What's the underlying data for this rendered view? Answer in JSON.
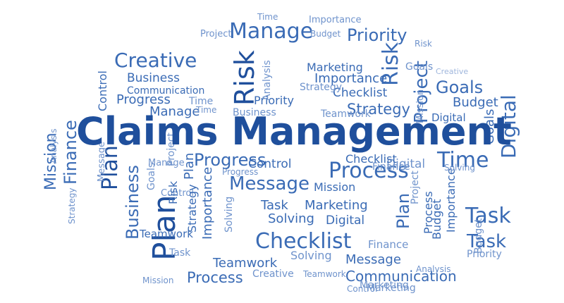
{
  "colors": {
    "dark": "#1f4f9c",
    "mid": "#3a6bb5",
    "light": "#6f93cc",
    "pale": "#9fb6dc",
    "background": "#ffffff"
  },
  "cloud": {
    "title": "Claims Management",
    "words": [
      "Manage",
      "Priority",
      "Risk",
      "Creative",
      "Risk",
      "Project",
      "Goals",
      "Business",
      "Communication",
      "Progress",
      "Manage",
      "Time",
      "Strategy",
      "Checklist",
      "Budget",
      "Digital",
      "Mission",
      "Finance",
      "Plan",
      "Business",
      "Process",
      "Time",
      "Digital",
      "Message",
      "Mission",
      "Control",
      "Progress",
      "Plan",
      "Task",
      "Marketing",
      "Solving",
      "Digital",
      "Checklist",
      "Message",
      "Communication",
      "Process",
      "Task",
      "Task",
      "Finance",
      "Solving",
      "Teamwork",
      "Importance",
      "Creative",
      "Marketing",
      "Goals",
      "Priority",
      "Project",
      "Budget",
      "Control",
      "Strategy",
      "Time",
      "Importance",
      "Analysis",
      "Message",
      "Control",
      "Teamwork",
      "Business",
      "Plan",
      "Goals",
      "Project",
      "Risk",
      "Solving",
      "Budget",
      "Teamwork",
      "Importance",
      "Analysis",
      "Finance",
      "Process",
      "Mission",
      "Strategy",
      "Control",
      "Marketing",
      "Time",
      "Creative",
      "Digital",
      "Manage",
      "Progress",
      "Checklist",
      "Task",
      "Solving",
      "Plan",
      "Project",
      "Budget",
      "Priority",
      "Goals",
      "Risk",
      "Importance",
      "Teamwork",
      "Strategy",
      "Mission",
      "Analysis",
      "Marketing"
    ]
  }
}
